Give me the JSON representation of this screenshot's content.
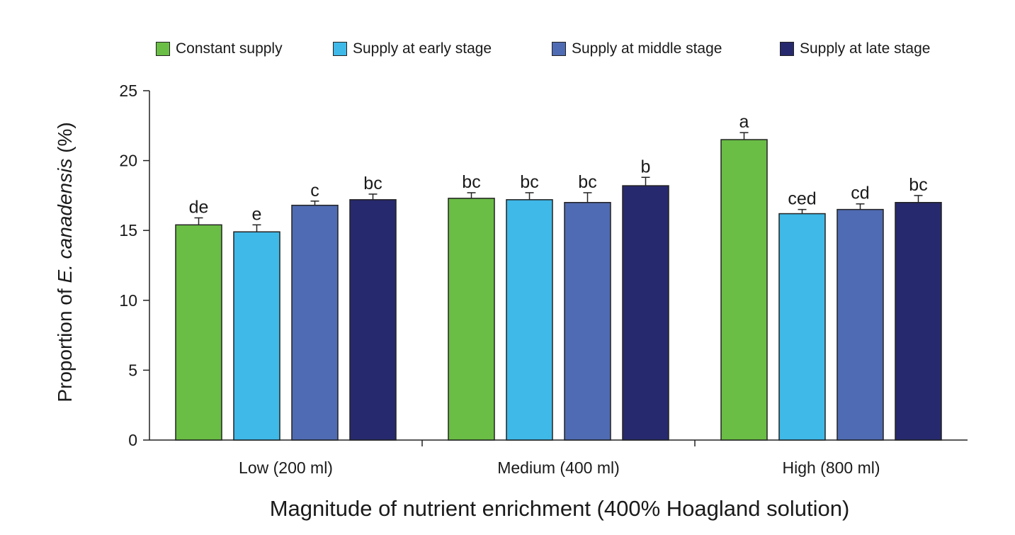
{
  "chart_data": {
    "type": "bar",
    "categories": [
      "Low (200 ml)",
      "Medium (400 ml)",
      "High (800 ml)"
    ],
    "series": [
      {
        "name": "Constant supply",
        "color": "#6abd45",
        "values": [
          15.4,
          17.3,
          21.5
        ],
        "errors": [
          0.5,
          0.4,
          0.5
        ],
        "letters": [
          "de",
          "bc",
          "a"
        ]
      },
      {
        "name": "Supply at early stage",
        "color": "#3fb9e8",
        "values": [
          14.9,
          17.2,
          16.2
        ],
        "errors": [
          0.5,
          0.5,
          0.3
        ],
        "letters": [
          "e",
          "bc",
          "ced"
        ]
      },
      {
        "name": "Supply at middle stage",
        "color": "#4f6bb3",
        "values": [
          16.8,
          17.0,
          16.5
        ],
        "errors": [
          0.3,
          0.7,
          0.4
        ],
        "letters": [
          "c",
          "bc",
          "cd"
        ]
      },
      {
        "name": "Supply at late stage",
        "color": "#27296e",
        "values": [
          17.2,
          18.2,
          17.0
        ],
        "errors": [
          0.4,
          0.6,
          0.5
        ],
        "letters": [
          "bc",
          "b",
          "bc"
        ]
      }
    ],
    "ylim": [
      0,
      25
    ],
    "yticks": [
      0,
      5,
      10,
      15,
      20,
      25
    ],
    "ylabel_prefix": "Proportion of",
    "ylabel_italic": "E. canadensis",
    "ylabel_suffix": "(%)",
    "xlabel": "Magnitude of nutrient enrichment (400% Hoagland solution)",
    "legend_position": "top",
    "grid": false
  }
}
